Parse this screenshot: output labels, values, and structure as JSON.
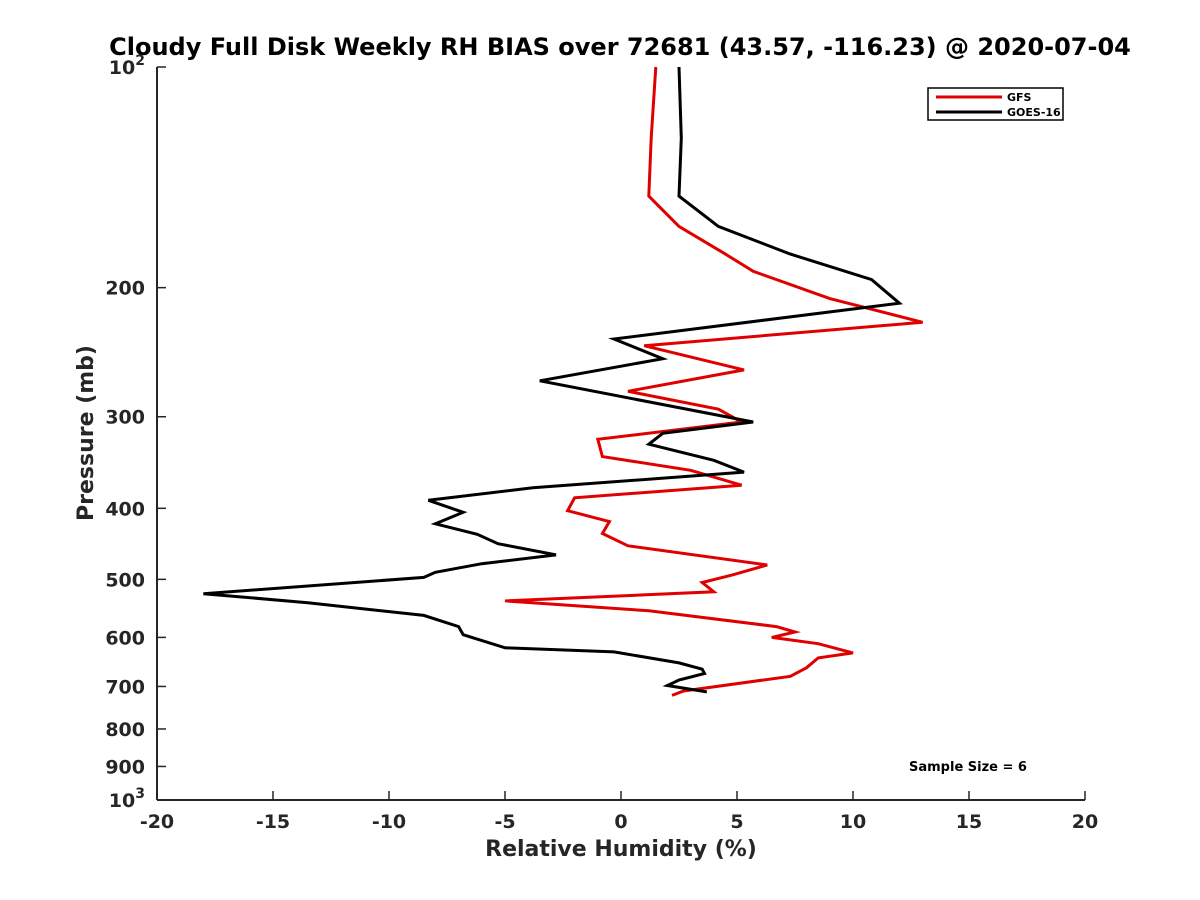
{
  "chart_data": {
    "type": "line",
    "title": "Cloudy Full Disk Weekly RH BIAS over 72681 (43.57, -116.23) @ 2020-07-04",
    "xlabel": "Relative Humidity (%)",
    "ylabel": "Pressure (mb)",
    "xlim": [
      -20,
      20
    ],
    "ylim": [
      100,
      1000
    ],
    "y_scale": "log",
    "y_reversed": true,
    "grid": false,
    "legend_position": "top-right",
    "x_ticks": [
      -20,
      -15,
      -10,
      -5,
      0,
      5,
      10,
      15,
      20
    ],
    "x_tick_labels": [
      "-20",
      "-15",
      "-10",
      "-5",
      "0",
      "5",
      "10",
      "15",
      "20"
    ],
    "y_ticks": [
      {
        "value": 100,
        "base": "10",
        "exp": "2",
        "label": ""
      },
      {
        "value": 200,
        "base": "",
        "exp": "",
        "label": "200"
      },
      {
        "value": 300,
        "base": "",
        "exp": "",
        "label": "300"
      },
      {
        "value": 400,
        "base": "",
        "exp": "",
        "label": "400"
      },
      {
        "value": 500,
        "base": "",
        "exp": "",
        "label": "500"
      },
      {
        "value": 600,
        "base": "",
        "exp": "",
        "label": "600"
      },
      {
        "value": 700,
        "base": "",
        "exp": "",
        "label": "700"
      },
      {
        "value": 800,
        "base": "",
        "exp": "",
        "label": "800"
      },
      {
        "value": 900,
        "base": "",
        "exp": "",
        "label": "900"
      },
      {
        "value": 1000,
        "base": "10",
        "exp": "3",
        "label": ""
      }
    ],
    "annotation": "Sample Size = 6",
    "series": [
      {
        "name": "GFS",
        "color": "#e00000",
        "points": [
          [
            1.5,
            100
          ],
          [
            1.3,
            125
          ],
          [
            1.2,
            150
          ],
          [
            2.5,
            165
          ],
          [
            4.5,
            180
          ],
          [
            5.7,
            190
          ],
          [
            9.0,
            207
          ],
          [
            13.0,
            223
          ],
          [
            1.0,
            240
          ],
          [
            5.3,
            259
          ],
          [
            0.3,
            277
          ],
          [
            4.2,
            293
          ],
          [
            5.2,
            305
          ],
          [
            -1.0,
            322
          ],
          [
            -0.8,
            340
          ],
          [
            3.0,
            355
          ],
          [
            5.2,
            372
          ],
          [
            -2.0,
            387
          ],
          [
            -2.3,
            403
          ],
          [
            -0.5,
            417
          ],
          [
            -0.8,
            433
          ],
          [
            0.3,
            450
          ],
          [
            6.3,
            478
          ],
          [
            4.8,
            493
          ],
          [
            3.5,
            505
          ],
          [
            4.0,
            520
          ],
          [
            -5.0,
            535
          ],
          [
            1.2,
            552
          ],
          [
            6.7,
            580
          ],
          [
            7.5,
            590
          ],
          [
            6.5,
            600
          ],
          [
            8.5,
            612
          ],
          [
            10.0,
            630
          ],
          [
            8.5,
            640
          ],
          [
            8.0,
            660
          ],
          [
            7.3,
            678
          ],
          [
            2.7,
            710
          ],
          [
            2.2,
            720
          ]
        ]
      },
      {
        "name": "GOES-16",
        "color": "#000000",
        "points": [
          [
            2.5,
            100
          ],
          [
            2.6,
            125
          ],
          [
            2.5,
            150
          ],
          [
            4.2,
            165
          ],
          [
            7.3,
            180
          ],
          [
            10.8,
            195
          ],
          [
            12.0,
            210
          ],
          [
            -0.3,
            235
          ],
          [
            1.8,
            250
          ],
          [
            -3.5,
            268
          ],
          [
            5.7,
            305
          ],
          [
            1.8,
            316
          ],
          [
            1.2,
            327
          ],
          [
            4.0,
            344
          ],
          [
            5.3,
            357
          ],
          [
            -3.8,
            375
          ],
          [
            -8.3,
            390
          ],
          [
            -6.8,
            405
          ],
          [
            -8.0,
            420
          ],
          [
            -6.2,
            434
          ],
          [
            -5.3,
            447
          ],
          [
            -2.8,
            463
          ],
          [
            -6.0,
            476
          ],
          [
            -8.0,
            489
          ],
          [
            -8.5,
            497
          ],
          [
            -18.0,
            523
          ],
          [
            -13.5,
            538
          ],
          [
            -8.5,
            560
          ],
          [
            -7.0,
            580
          ],
          [
            -6.8,
            595
          ],
          [
            -5.0,
            620
          ],
          [
            -0.3,
            628
          ],
          [
            2.5,
            650
          ],
          [
            3.5,
            663
          ],
          [
            3.6,
            672
          ],
          [
            2.5,
            686
          ],
          [
            2.0,
            698
          ],
          [
            3.7,
            712
          ]
        ]
      }
    ]
  }
}
